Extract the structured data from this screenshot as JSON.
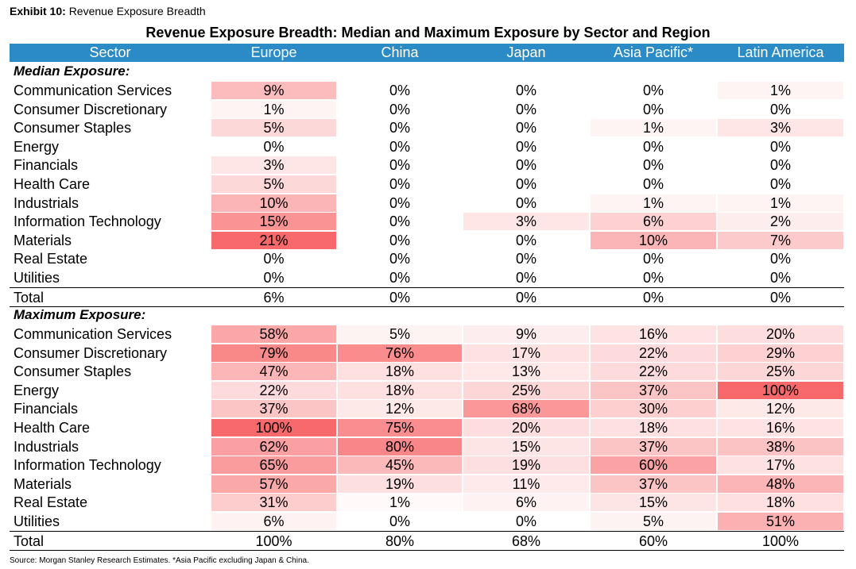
{
  "exhibit": {
    "label": "Exhibit 10:",
    "text": "Revenue Exposure Breadth"
  },
  "title": "Revenue Exposure Breadth: Median and Maximum Exposure by Sector and Region",
  "columns": [
    "Sector",
    "Europe",
    "China",
    "Japan",
    "Asia Pacific*",
    "Latin America"
  ],
  "heat_colors": {
    "low": "#ffffff",
    "high": "#f8696b"
  },
  "sections": [
    {
      "label": "Median Exposure:",
      "rows": [
        {
          "sector": "Communication Services",
          "values": [
            "9%",
            "0%",
            "0%",
            "0%",
            "1%"
          ]
        },
        {
          "sector": "Consumer Discretionary",
          "values": [
            "1%",
            "0%",
            "0%",
            "0%",
            "0%"
          ]
        },
        {
          "sector": "Consumer Staples",
          "values": [
            "5%",
            "0%",
            "0%",
            "1%",
            "3%"
          ]
        },
        {
          "sector": "Energy",
          "values": [
            "0%",
            "0%",
            "0%",
            "0%",
            "0%"
          ]
        },
        {
          "sector": "Financials",
          "values": [
            "3%",
            "0%",
            "0%",
            "0%",
            "0%"
          ]
        },
        {
          "sector": "Health Care",
          "values": [
            "5%",
            "0%",
            "0%",
            "0%",
            "0%"
          ]
        },
        {
          "sector": "Industrials",
          "values": [
            "10%",
            "0%",
            "0%",
            "1%",
            "1%"
          ]
        },
        {
          "sector": "Information Technology",
          "values": [
            "15%",
            "0%",
            "3%",
            "6%",
            "2%"
          ]
        },
        {
          "sector": "Materials",
          "values": [
            "21%",
            "0%",
            "0%",
            "10%",
            "7%"
          ]
        },
        {
          "sector": "Real Estate",
          "values": [
            "0%",
            "0%",
            "0%",
            "0%",
            "0%"
          ]
        },
        {
          "sector": "Utilities",
          "values": [
            "0%",
            "0%",
            "0%",
            "0%",
            "0%"
          ]
        }
      ],
      "total": {
        "sector": "Total",
        "values": [
          "6%",
          "0%",
          "0%",
          "0%",
          "0%"
        ]
      }
    },
    {
      "label": "Maximum Exposure:",
      "rows": [
        {
          "sector": "Communication Services",
          "values": [
            "58%",
            "5%",
            "9%",
            "16%",
            "20%"
          ]
        },
        {
          "sector": "Consumer Discretionary",
          "values": [
            "79%",
            "76%",
            "17%",
            "22%",
            "29%"
          ]
        },
        {
          "sector": "Consumer Staples",
          "values": [
            "47%",
            "18%",
            "13%",
            "22%",
            "25%"
          ]
        },
        {
          "sector": "Energy",
          "values": [
            "22%",
            "18%",
            "25%",
            "37%",
            "100%"
          ]
        },
        {
          "sector": "Financials",
          "values": [
            "37%",
            "12%",
            "68%",
            "30%",
            "12%"
          ]
        },
        {
          "sector": "Health Care",
          "values": [
            "100%",
            "75%",
            "20%",
            "18%",
            "16%"
          ]
        },
        {
          "sector": "Industrials",
          "values": [
            "62%",
            "80%",
            "15%",
            "37%",
            "38%"
          ]
        },
        {
          "sector": "Information Technology",
          "values": [
            "65%",
            "45%",
            "19%",
            "60%",
            "17%"
          ]
        },
        {
          "sector": "Materials",
          "values": [
            "57%",
            "19%",
            "11%",
            "37%",
            "48%"
          ]
        },
        {
          "sector": "Real Estate",
          "values": [
            "31%",
            "1%",
            "6%",
            "15%",
            "18%"
          ]
        },
        {
          "sector": "Utilities",
          "values": [
            "6%",
            "0%",
            "0%",
            "5%",
            "51%"
          ]
        }
      ],
      "total": {
        "sector": "Total",
        "values": [
          "100%",
          "80%",
          "68%",
          "60%",
          "100%"
        ]
      }
    }
  ],
  "source": "Source: Morgan Stanley Research Estimates. *Asia Pacific excluding Japan & China."
}
